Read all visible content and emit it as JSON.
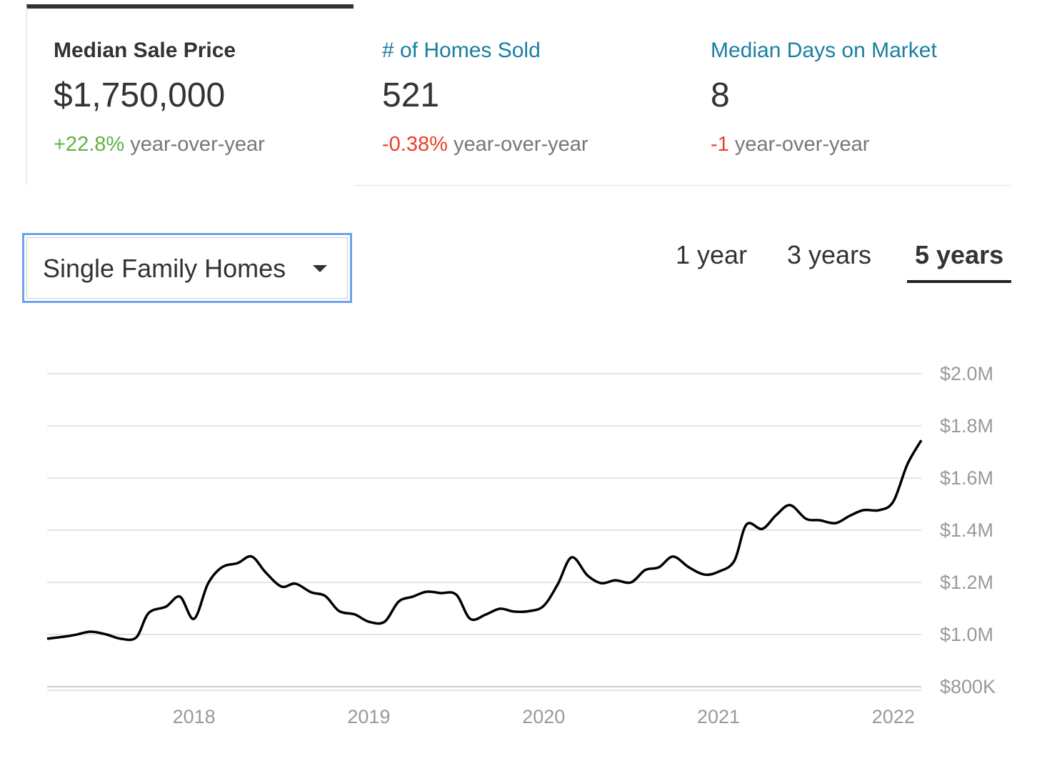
{
  "stats": [
    {
      "label": "Median Sale Price",
      "value": "$1,750,000",
      "change": "+22.8%",
      "change_suffix": "year-over-year"
    },
    {
      "label": "# of Homes Sold",
      "value": "521",
      "change": "-0.38%",
      "change_suffix": "year-over-year"
    },
    {
      "label": "Median Days on Market",
      "value": "8",
      "change": "-1",
      "change_suffix": "year-over-year"
    }
  ],
  "property_type": "Single Family Homes",
  "ranges": [
    "1 year",
    "3 years",
    "5 years"
  ],
  "chart_data": {
    "type": "line",
    "x": [
      2017.16,
      2017.26,
      2017.33,
      2017.41,
      2017.5,
      2017.58,
      2017.67,
      2017.74,
      2017.84,
      2017.92,
      2018.0,
      2018.08,
      2018.16,
      2018.25,
      2018.33,
      2018.41,
      2018.5,
      2018.58,
      2018.67,
      2018.75,
      2018.83,
      2018.92,
      2019.0,
      2019.09,
      2019.17,
      2019.25,
      2019.33,
      2019.41,
      2019.5,
      2019.58,
      2019.67,
      2019.75,
      2019.83,
      2019.92,
      2020.0,
      2020.08,
      2020.16,
      2020.25,
      2020.33,
      2020.41,
      2020.5,
      2020.58,
      2020.66,
      2020.74,
      2020.83,
      2020.92,
      2021.0,
      2021.09,
      2021.16,
      2021.25,
      2021.33,
      2021.41,
      2021.5,
      2021.58,
      2021.67,
      2021.75,
      2021.83,
      2021.92,
      2022.0,
      2022.08,
      2022.16
    ],
    "series": [
      {
        "color": "#000000",
        "values": [
          984000,
          992000,
          1000000,
          1011000,
          1000000,
          984000,
          989000,
          1082000,
          1107000,
          1145000,
          1060000,
          1195000,
          1258000,
          1274000,
          1299000,
          1238000,
          1184000,
          1195000,
          1162000,
          1148000,
          1090000,
          1077000,
          1049000,
          1049000,
          1126000,
          1145000,
          1164000,
          1159000,
          1153000,
          1060000,
          1077000,
          1099000,
          1088000,
          1090000,
          1110000,
          1192000,
          1296000,
          1227000,
          1197000,
          1208000,
          1200000,
          1247000,
          1258000,
          1299000,
          1258000,
          1230000,
          1241000,
          1282000,
          1422000,
          1405000,
          1458000,
          1496000,
          1444000,
          1438000,
          1427000,
          1455000,
          1477000,
          1477000,
          1510000,
          1652000,
          1745000
        ]
      }
    ],
    "xlim": [
      2017.16,
      2022.16
    ],
    "xticks": [
      2018,
      2019,
      2020,
      2021,
      2022
    ],
    "ylim": [
      800000,
      2000000
    ],
    "yticks": [
      {
        "value": 800000,
        "label": "$800K"
      },
      {
        "value": 1000000,
        "label": "$1.0M"
      },
      {
        "value": 1200000,
        "label": "$1.2M"
      },
      {
        "value": 1400000,
        "label": "$1.4M"
      },
      {
        "value": 1600000,
        "label": "$1.6M"
      },
      {
        "value": 1800000,
        "label": "$1.8M"
      },
      {
        "value": 2000000,
        "label": "$2.0M"
      }
    ],
    "grid": true
  }
}
